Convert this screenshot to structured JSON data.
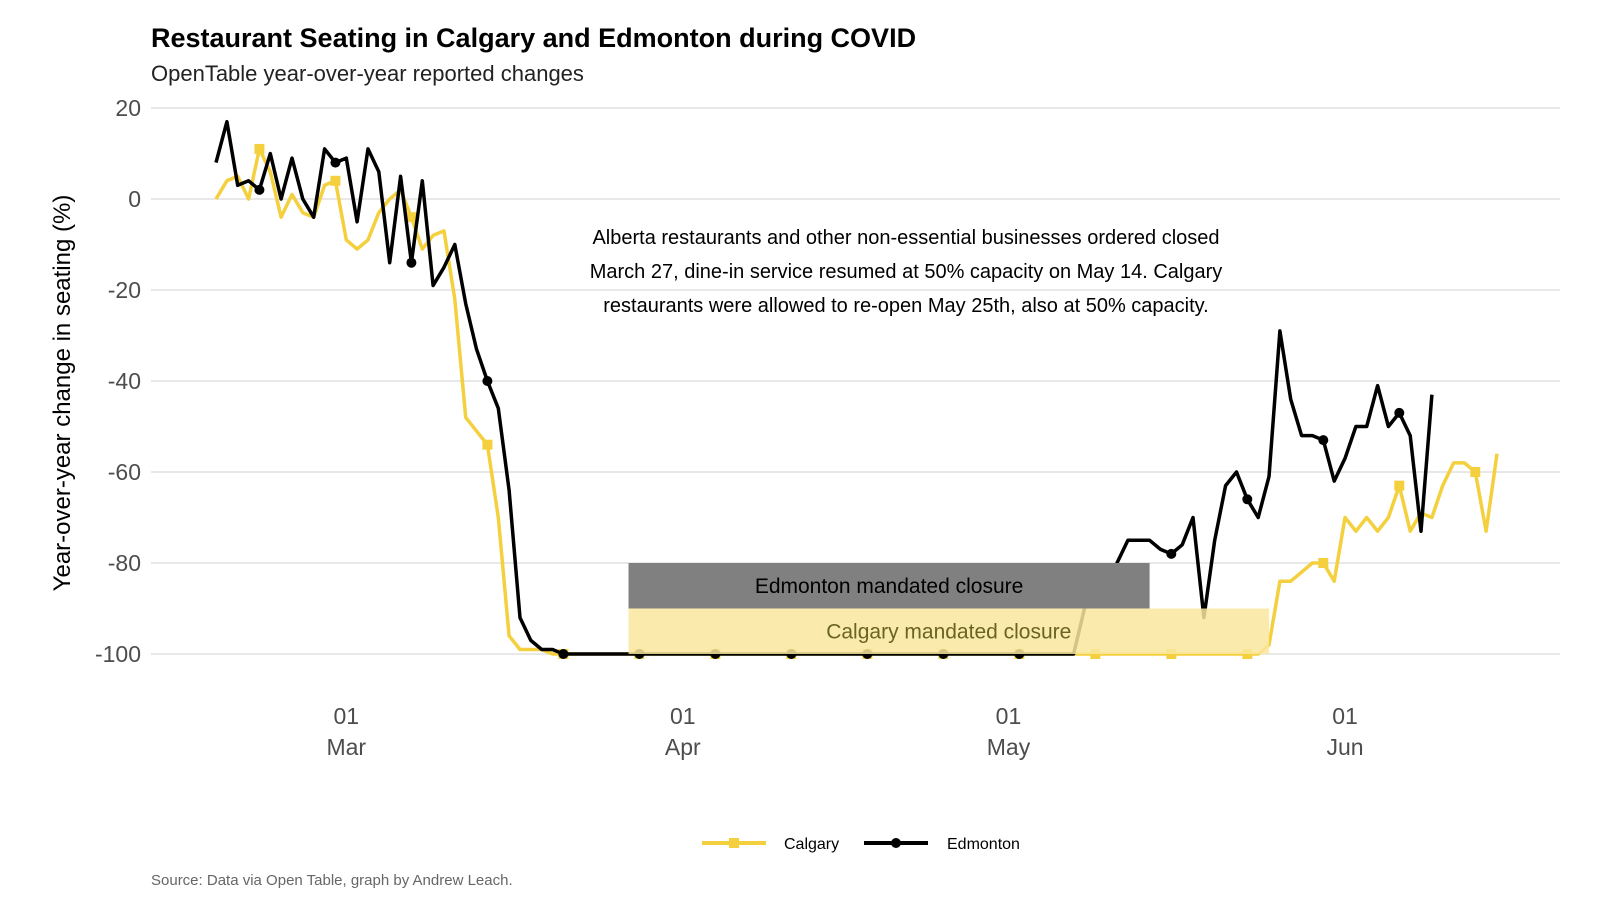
{
  "chart_data": {
    "type": "line",
    "title": "Restaurant Seating in Calgary and Edmonton during COVID",
    "subtitle": "OpenTable year-over-year reported changes",
    "ylabel": "Year-over-year change in seating (%)",
    "xlabel": "",
    "ylim": [
      -100,
      20
    ],
    "yticks": [
      20,
      0,
      -20,
      -40,
      -60,
      -80,
      -100
    ],
    "xlim": [
      "2020-02-18",
      "2020-06-19"
    ],
    "xticks": [
      {
        "date": "2020-03-01",
        "day": "01",
        "month": "Mar"
      },
      {
        "date": "2020-04-01",
        "day": "01",
        "month": "Apr"
      },
      {
        "date": "2020-05-01",
        "day": "01",
        "month": "May"
      },
      {
        "date": "2020-06-01",
        "day": "01",
        "month": "Jun"
      }
    ],
    "grid": true,
    "legend_position": "bottom",
    "annotation": [
      "Alberta restaurants and other non-essential businesses ordered closed",
      "March 27, dine-in service resumed at 50% capacity on May 14. Calgary",
      "restaurants were allowed to re-open May 25th, also at 50% capacity."
    ],
    "closures": [
      {
        "label": "Edmonton mandated closure",
        "start": "2020-03-27",
        "end": "2020-05-14",
        "ymin": -90,
        "ymax": -80,
        "color": "#808080",
        "text_color": "#000000"
      },
      {
        "label": "Calgary mandated closure",
        "start": "2020-03-27",
        "end": "2020-05-25",
        "ymin": -100,
        "ymax": -90,
        "color": "#f9e79f",
        "text_color": "#6b6420"
      }
    ],
    "start_date": "2020-02-18",
    "series": [
      {
        "name": "Calgary",
        "color": "#f4d03f",
        "marker": "square",
        "values": [
          0,
          4,
          5,
          0,
          11,
          6,
          -4,
          1,
          -3,
          -4,
          3,
          4,
          -9,
          -11,
          -9,
          -3,
          0,
          2,
          -4,
          -11,
          -8,
          -7,
          -22,
          -48,
          -51,
          -54,
          -70,
          -96,
          -99,
          -99,
          -99,
          -100,
          -100,
          -100,
          -100,
          -100,
          -100,
          -100,
          -100,
          -100,
          -100,
          -100,
          -100,
          -100,
          -100,
          -100,
          -100,
          -100,
          -100,
          -100,
          -100,
          -100,
          -100,
          -100,
          -100,
          -100,
          -100,
          -100,
          -100,
          -100,
          -100,
          -100,
          -100,
          -100,
          -100,
          -100,
          -100,
          -100,
          -100,
          -100,
          -100,
          -100,
          -100,
          -100,
          -100,
          -100,
          -100,
          -100,
          -100,
          -100,
          -100,
          -100,
          -100,
          -100,
          -100,
          -100,
          -100,
          -100,
          -100,
          -100,
          -100,
          -100,
          -100,
          -100,
          -100,
          -100,
          -100,
          -98,
          -84,
          -84,
          -82,
          -80,
          -80,
          -84,
          -70,
          -73,
          -70,
          -73,
          -70,
          -63,
          -73,
          -69,
          -70,
          -63,
          -58,
          -58,
          -60,
          -73,
          -56
        ]
      },
      {
        "name": "Edmonton",
        "color": "#000000",
        "marker": "circle",
        "values": [
          8,
          17,
          3,
          4,
          2,
          10,
          0,
          9,
          0,
          -4,
          11,
          8,
          9,
          -5,
          11,
          6,
          -14,
          5,
          -14,
          4,
          -19,
          -15,
          -10,
          -23,
          -33,
          -40,
          -46,
          -64,
          -92,
          -97,
          -99,
          -99,
          -100,
          -100,
          -100,
          -100,
          -100,
          -100,
          -100,
          -100,
          -100,
          -100,
          -100,
          -100,
          -100,
          -100,
          -100,
          -100,
          -100,
          -100,
          -100,
          -100,
          -100,
          -100,
          -100,
          -100,
          -100,
          -100,
          -100,
          -100,
          -100,
          -100,
          -100,
          -100,
          -100,
          -100,
          -100,
          -100,
          -100,
          -100,
          -100,
          -100,
          -100,
          -100,
          -100,
          -100,
          -100,
          -100,
          -100,
          -100,
          -90,
          -85,
          -86,
          -80,
          -75,
          -75,
          -75,
          -77,
          -78,
          -76,
          -70,
          -92,
          -75,
          -63,
          -60,
          -66,
          -70,
          -61,
          -29,
          -44,
          -52,
          -52,
          -53,
          -62,
          -57,
          -50,
          -50,
          -41,
          -50,
          -47,
          -52,
          -73,
          -43
        ]
      }
    ]
  },
  "caption": "Source: Data via Open Table, graph by Andrew Leach."
}
